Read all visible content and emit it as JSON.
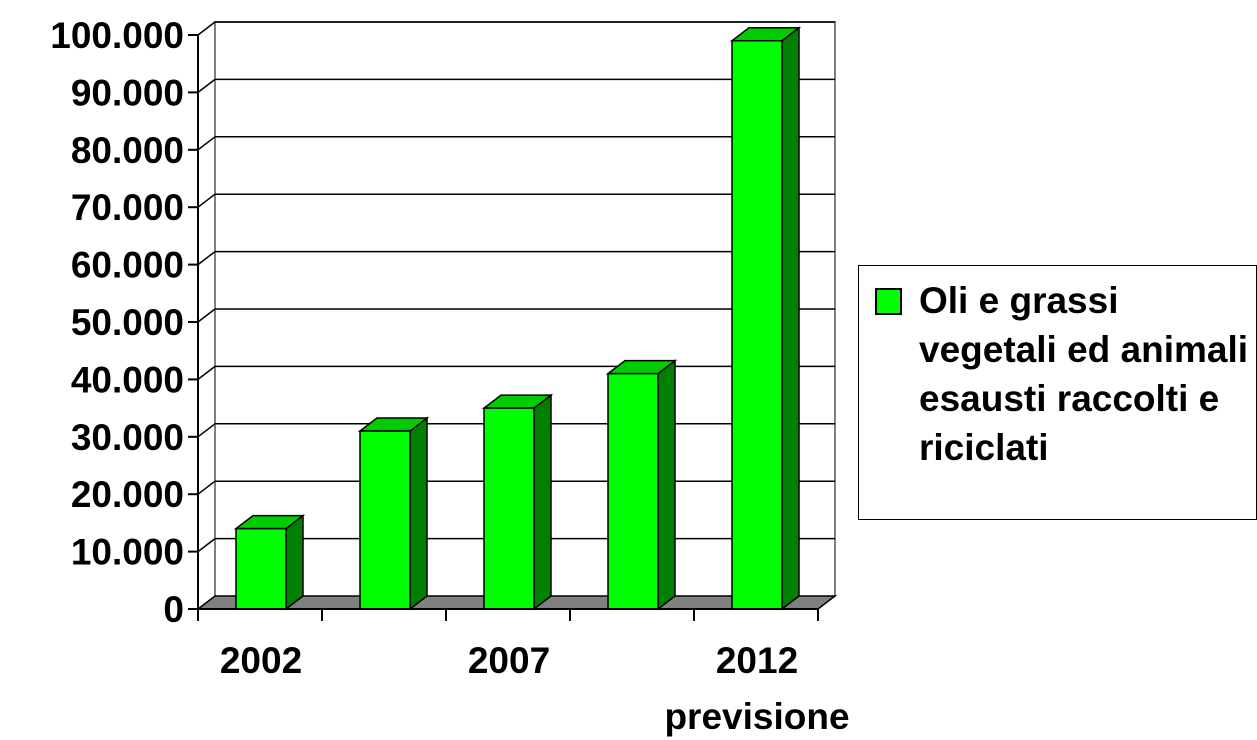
{
  "chart_data": {
    "type": "bar",
    "categories": [
      "2002",
      "",
      "2007",
      "",
      "2012"
    ],
    "category_sublabels": [
      "",
      "",
      "",
      "",
      "previsione"
    ],
    "series": [
      {
        "name": "Oli e grassi vegetali ed animali esausti raccolti e riciclati",
        "values": [
          14000,
          31000,
          35000,
          41000,
          99000
        ]
      }
    ],
    "y_ticks": [
      "0",
      "10.000",
      "20.000",
      "30.000",
      "40.000",
      "50.000",
      "60.000",
      "70.000",
      "80.000",
      "90.000",
      "100.000"
    ],
    "ylim": [
      0,
      100000
    ],
    "grid": true,
    "legend": "right",
    "three_d": true,
    "colors": {
      "bar_front": "#00ff00",
      "bar_side": "#008000",
      "bar_top": "#00cc00",
      "floor": "#808080",
      "grid": "#000000",
      "wall_edge": "#808080"
    }
  }
}
